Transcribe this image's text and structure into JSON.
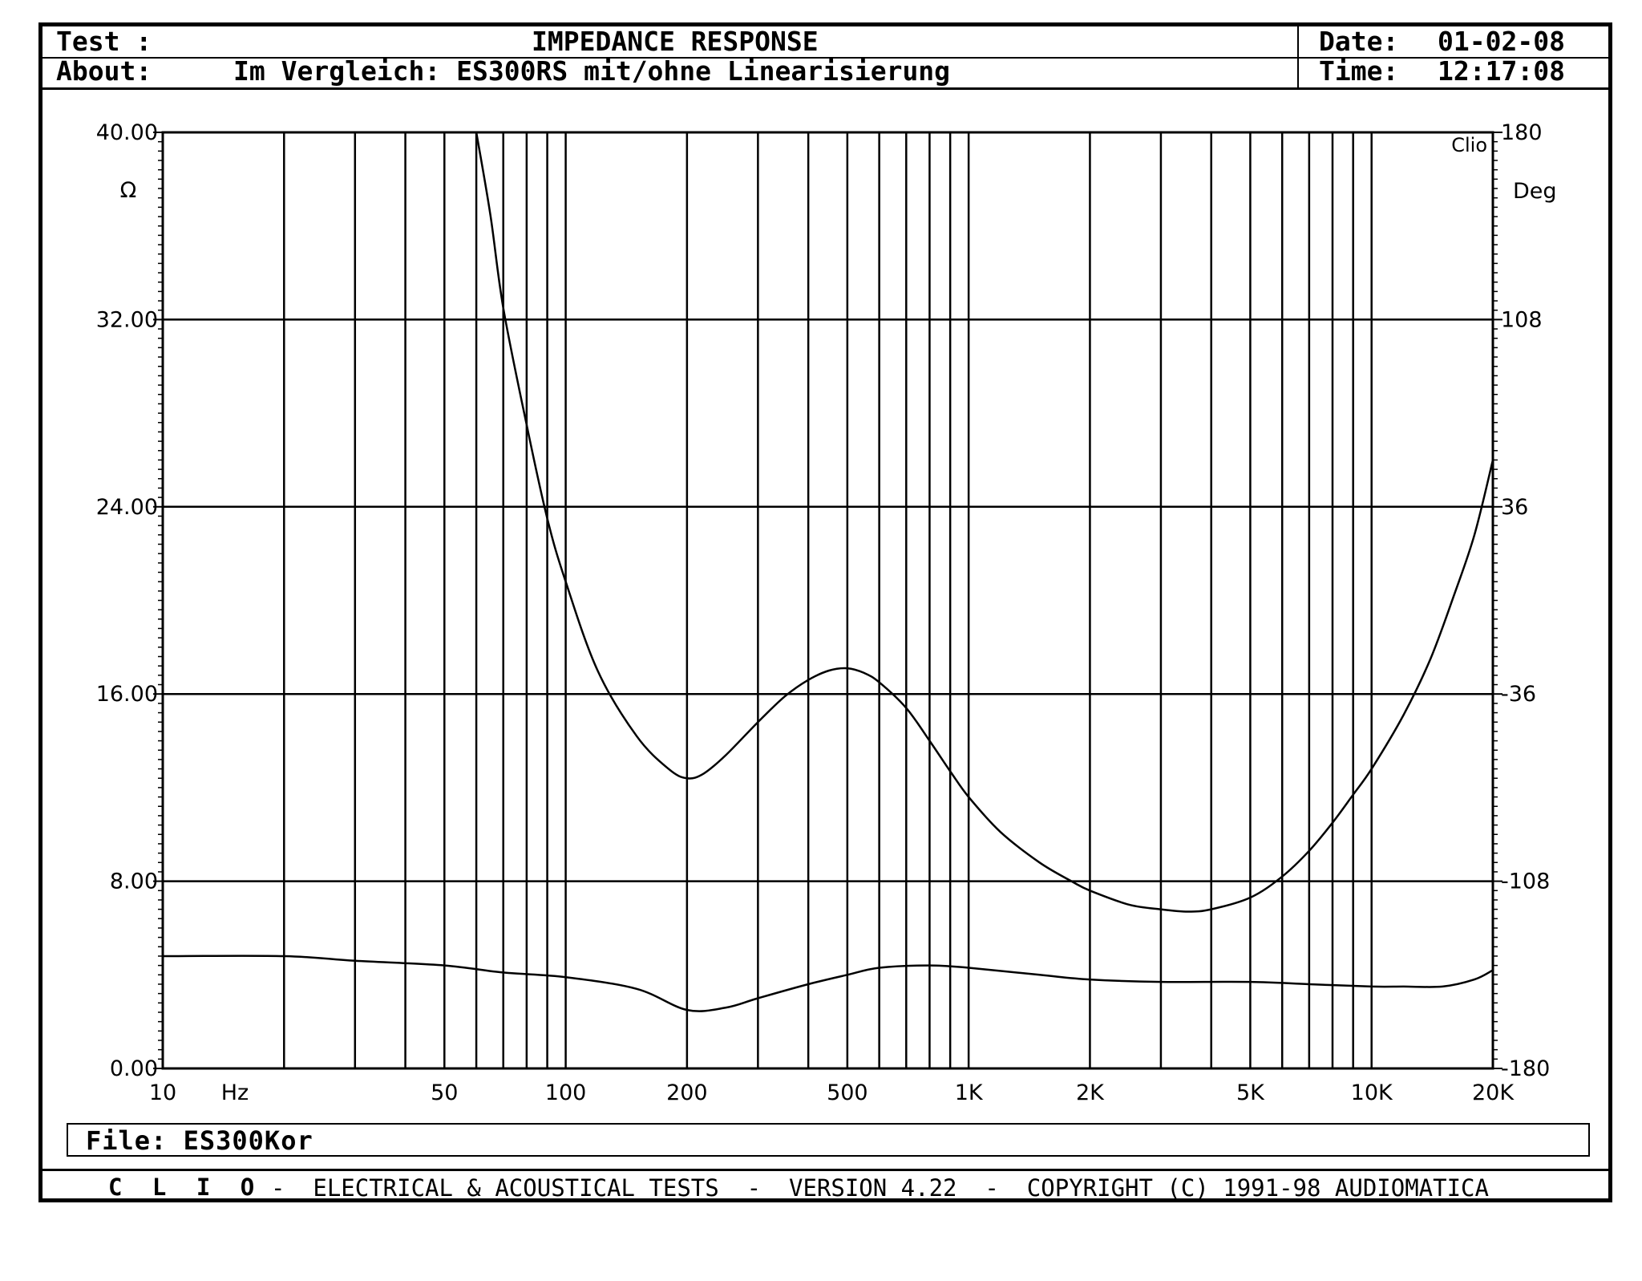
{
  "header": {
    "test_label": "Test :",
    "title": "IMPEDANCE RESPONSE",
    "about_label": "About:",
    "about_text": "Im Vergleich: ES300RS mit/ohne Linearisierung",
    "date_label": "Date:",
    "date_value": "01-02-08",
    "time_label": "Time:",
    "time_value": "12:17:08"
  },
  "chart_data": {
    "type": "line",
    "x_scale": "log",
    "xlim": [
      10,
      20000
    ],
    "ylim": [
      0,
      40
    ],
    "y2lim": [
      -180,
      180
    ],
    "grid": true,
    "ylabel": "Ω",
    "y2label": "Deg",
    "xunit": "Hz",
    "corner_label": "Clio",
    "y_ticks": [
      "0.00",
      "8.00",
      "16.00",
      "24.00",
      "32.00",
      "40.00"
    ],
    "y_tick_values": [
      0,
      8,
      16,
      24,
      32,
      40
    ],
    "y2_ticks": [
      "-180",
      "-108",
      "-36",
      "36",
      "108",
      "180"
    ],
    "x_tick_labels": [
      {
        "value": 10,
        "label": "10"
      },
      {
        "value": 50,
        "label": "50"
      },
      {
        "value": 100,
        "label": "100"
      },
      {
        "value": 200,
        "label": "200"
      },
      {
        "value": 500,
        "label": "500"
      },
      {
        "value": 1000,
        "label": "1K"
      },
      {
        "value": 2000,
        "label": "2K"
      },
      {
        "value": 5000,
        "label": "5K"
      },
      {
        "value": 10000,
        "label": "10K"
      },
      {
        "value": 20000,
        "label": "20K"
      }
    ],
    "series": [
      {
        "x": [
          60,
          65,
          70,
          80,
          90,
          100,
          120,
          150,
          180,
          200,
          220,
          250,
          300,
          350,
          400,
          450,
          500,
          550,
          600,
          700,
          800,
          900,
          1000,
          1200,
          1500,
          1800,
          2000,
          2500,
          3000,
          3500,
          4000,
          5000,
          6000,
          7000,
          8000,
          9000,
          10000,
          12000,
          14000,
          16000,
          18000,
          20000
        ],
        "y": [
          40,
          36.5,
          32.5,
          27.5,
          23.5,
          20.8,
          17.0,
          14.2,
          12.8,
          12.4,
          12.6,
          13.4,
          14.8,
          15.9,
          16.6,
          17.0,
          17.1,
          16.9,
          16.5,
          15.4,
          14.0,
          12.7,
          11.6,
          10.1,
          8.8,
          8.0,
          7.6,
          7.0,
          6.8,
          6.7,
          6.8,
          7.3,
          8.2,
          9.3,
          10.5,
          11.7,
          12.8,
          15.1,
          17.5,
          20.2,
          22.8,
          26.0
        ]
      },
      {
        "x": [
          10,
          20,
          30,
          50,
          70,
          100,
          150,
          200,
          250,
          300,
          400,
          500,
          600,
          800,
          1000,
          1500,
          2000,
          3000,
          5000,
          7000,
          10000,
          12000,
          15000,
          18000,
          20000
        ],
        "y": [
          4.8,
          4.8,
          4.6,
          4.4,
          4.1,
          3.9,
          3.4,
          2.5,
          2.6,
          3.0,
          3.6,
          4.0,
          4.3,
          4.4,
          4.3,
          4.0,
          3.8,
          3.7,
          3.7,
          3.6,
          3.5,
          3.5,
          3.5,
          3.8,
          4.2
        ]
      }
    ]
  },
  "file": {
    "label": "File:",
    "value": "ES300Kor"
  },
  "footer": {
    "brand": "C L I O",
    "text": "-  ELECTRICAL & ACOUSTICAL TESTS  -  VERSION 4.22  -  COPYRIGHT (C) 1991-98 AUDIOMATICA"
  }
}
